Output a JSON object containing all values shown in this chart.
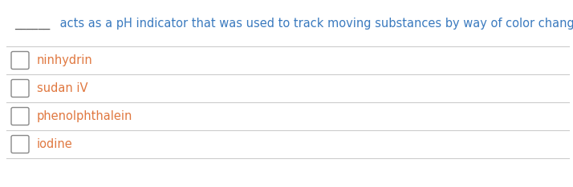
{
  "background_color": "#ffffff",
  "question_dash": "______",
  "question_dash_color": "#5a5a5a",
  "question_body": " acts as a pH indicator that was used to track moving substances by way of color change.",
  "question_body_color": "#3a7abf",
  "options": [
    "ninhydrin",
    "sudan iV",
    "phenolphthalein",
    "iodine"
  ],
  "option_color": "#e07840",
  "checkbox_edge_color": "#888888",
  "line_color": "#cccccc",
  "font_size_question": 10.5,
  "font_size_options": 10.5
}
